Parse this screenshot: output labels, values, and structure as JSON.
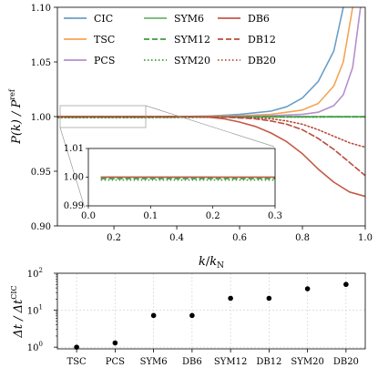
{
  "chart_data": [
    {
      "type": "line",
      "xlabel_main": "k",
      "xlabel_sub": "N",
      "ylabel_main": "P(k) / P",
      "ylabel_sup": "ref",
      "xlim": [
        0.02,
        1.0
      ],
      "ylim": [
        0.9,
        1.1
      ],
      "xticks": [
        "0.2",
        "0.4",
        "0.6",
        "0.8",
        "1.0"
      ],
      "xtick_values": [
        0.2,
        0.4,
        0.6,
        0.8,
        1.0
      ],
      "yticks": [
        "0.90",
        "0.95",
        "1.00",
        "1.05",
        "1.10"
      ],
      "ytick_values": [
        0.9,
        0.95,
        1.0,
        1.05,
        1.1
      ],
      "legend_placement": "top-left, 3 columns",
      "series": [
        {
          "name": "CIC",
          "color": "#6a9fc9",
          "dash": "solid",
          "x": [
            0.02,
            0.2,
            0.4,
            0.5,
            0.6,
            0.7,
            0.75,
            0.8,
            0.85,
            0.9,
            0.93
          ],
          "y": [
            1.0,
            1.0,
            1.0,
            1.0005,
            1.002,
            1.005,
            1.009,
            1.017,
            1.032,
            1.06,
            1.1
          ]
        },
        {
          "name": "TSC",
          "color": "#f5a455",
          "dash": "solid",
          "x": [
            0.02,
            0.4,
            0.6,
            0.7,
            0.8,
            0.85,
            0.9,
            0.93,
            0.96
          ],
          "y": [
            1.0,
            1.0,
            1.0008,
            1.002,
            1.006,
            1.012,
            1.028,
            1.05,
            1.1
          ]
        },
        {
          "name": "PCS",
          "color": "#b58fcf",
          "dash": "solid",
          "x": [
            0.02,
            0.5,
            0.7,
            0.8,
            0.85,
            0.9,
            0.93,
            0.96,
            0.985
          ],
          "y": [
            1.0,
            1.0,
            1.0008,
            1.002,
            1.004,
            1.01,
            1.02,
            1.045,
            1.1
          ]
        },
        {
          "name": "SYM6",
          "color": "#6db56d",
          "dash": "solid",
          "x": [
            0.02,
            0.3,
            0.5,
            0.7,
            0.9,
            1.0
          ],
          "y": [
            1.0,
            1.0,
            1.0,
            1.0,
            1.0,
            1.0
          ]
        },
        {
          "name": "SYM12",
          "color": "#3f9a3f",
          "dash": "dashed",
          "x": [
            0.02,
            0.3,
            0.5,
            0.7,
            0.9,
            1.0
          ],
          "y": [
            0.9995,
            0.9995,
            0.9997,
            0.9998,
            0.9998,
            0.9998
          ]
        },
        {
          "name": "SYM20",
          "color": "#3f9a3f",
          "dash": "dotted",
          "x": [
            0.02,
            0.3,
            0.5,
            0.7,
            0.9,
            1.0
          ],
          "y": [
            0.999,
            0.999,
            0.9993,
            0.9995,
            0.9996,
            0.9996
          ]
        },
        {
          "name": "DB6",
          "color": "#c45a48",
          "dash": "solid",
          "x": [
            0.02,
            0.3,
            0.45,
            0.5,
            0.55,
            0.6,
            0.65,
            0.7,
            0.75,
            0.8,
            0.85,
            0.9,
            0.95,
            1.0
          ],
          "y": [
            1.0,
            1.0,
            1.0,
            0.9995,
            0.998,
            0.995,
            0.991,
            0.985,
            0.977,
            0.966,
            0.952,
            0.94,
            0.931,
            0.927
          ]
        },
        {
          "name": "DB12",
          "color": "#b84e3c",
          "dash": "dashed",
          "x": [
            0.02,
            0.4,
            0.55,
            0.65,
            0.7,
            0.75,
            0.8,
            0.85,
            0.9,
            0.95,
            1.0
          ],
          "y": [
            1.0,
            1.0,
            0.9995,
            0.998,
            0.996,
            0.993,
            0.988,
            0.98,
            0.97,
            0.958,
            0.946
          ]
        },
        {
          "name": "DB20",
          "color": "#b84e3c",
          "dash": "dotted",
          "x": [
            0.02,
            0.45,
            0.6,
            0.7,
            0.75,
            0.8,
            0.85,
            0.9,
            0.95,
            1.0
          ],
          "y": [
            1.0,
            1.0,
            0.9995,
            0.998,
            0.996,
            0.993,
            0.988,
            0.982,
            0.976,
            0.972
          ]
        }
      ]
    },
    {
      "type": "line",
      "role": "inset",
      "xlim": [
        0.0,
        0.3
      ],
      "ylim": [
        0.99,
        1.01
      ],
      "xticks": [
        "0.0",
        "0.1",
        "0.2",
        "0.3"
      ],
      "xtick_values": [
        0.0,
        0.1,
        0.2,
        0.3
      ],
      "yticks": [
        "0.99",
        "1.00",
        "1.01"
      ],
      "ytick_values": [
        0.99,
        1.0,
        1.01
      ]
    },
    {
      "type": "scatter",
      "ylabel_main": "Δt / Δt",
      "ylabel_sup": "CIC",
      "yscale": "log",
      "ylim": [
        0.9,
        100
      ],
      "yticks": [
        "10",
        "10",
        "10"
      ],
      "ytick_exps": [
        "0",
        "1",
        "2"
      ],
      "ytick_values": [
        1,
        10,
        100
      ],
      "grid": true,
      "marker_color": "#000000",
      "categories": [
        "TSC",
        "PCS",
        "SYM6",
        "DB6",
        "SYM12",
        "DB12",
        "SYM20",
        "DB20"
      ],
      "values": [
        1.0,
        1.3,
        7.2,
        7.2,
        21,
        21,
        38,
        50
      ]
    }
  ]
}
